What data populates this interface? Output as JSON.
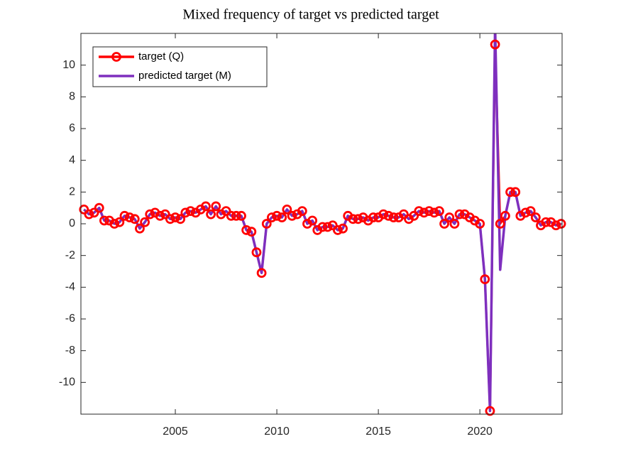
{
  "chart_data": {
    "type": "line",
    "title": "Mixed frequency of target vs predicted target",
    "x": [
      2000.5,
      2000.75,
      2001.0,
      2001.25,
      2001.5,
      2001.75,
      2002.0,
      2002.25,
      2002.5,
      2002.75,
      2003.0,
      2003.25,
      2003.5,
      2003.75,
      2004.0,
      2004.25,
      2004.5,
      2004.75,
      2005.0,
      2005.25,
      2005.5,
      2005.75,
      2006.0,
      2006.25,
      2006.5,
      2006.75,
      2007.0,
      2007.25,
      2007.5,
      2007.75,
      2008.0,
      2008.25,
      2008.5,
      2008.75,
      2009.0,
      2009.25,
      2009.5,
      2009.75,
      2010.0,
      2010.25,
      2010.5,
      2010.75,
      2011.0,
      2011.25,
      2011.5,
      2011.75,
      2012.0,
      2012.25,
      2012.5,
      2012.75,
      2013.0,
      2013.25,
      2013.5,
      2013.75,
      2014.0,
      2014.25,
      2014.5,
      2014.75,
      2015.0,
      2015.25,
      2015.5,
      2015.75,
      2016.0,
      2016.25,
      2016.5,
      2016.75,
      2017.0,
      2017.25,
      2017.5,
      2017.75,
      2018.0,
      2018.25,
      2018.5,
      2018.75,
      2019.0,
      2019.25,
      2019.5,
      2019.75,
      2020.0,
      2020.25,
      2020.5,
      2020.75,
      2021.0,
      2021.25,
      2021.5,
      2021.75,
      2022.0,
      2022.25,
      2022.5,
      2022.75,
      2023.0,
      2023.25,
      2023.5,
      2023.75,
      2024.0
    ],
    "series": [
      {
        "name": "target (Q)",
        "color": "#ff0000",
        "marker": "circle",
        "values": [
          0.9,
          0.6,
          0.7,
          1.0,
          0.2,
          0.2,
          0.0,
          0.1,
          0.5,
          0.4,
          0.3,
          -0.3,
          0.1,
          0.6,
          0.7,
          0.5,
          0.6,
          0.3,
          0.4,
          0.3,
          0.7,
          0.8,
          0.7,
          0.9,
          1.1,
          0.6,
          1.1,
          0.6,
          0.8,
          0.5,
          0.5,
          0.5,
          -0.4,
          -0.5,
          -1.8,
          -3.1,
          0.0,
          0.4,
          0.5,
          0.4,
          0.9,
          0.5,
          0.6,
          0.8,
          0.0,
          0.2,
          -0.4,
          -0.2,
          -0.2,
          -0.1,
          -0.4,
          -0.3,
          0.5,
          0.3,
          0.3,
          0.4,
          0.2,
          0.4,
          0.4,
          0.6,
          0.5,
          0.4,
          0.4,
          0.6,
          0.3,
          0.5,
          0.8,
          0.7,
          0.8,
          0.7,
          0.8,
          0.0,
          0.4,
          0.0,
          0.6,
          0.6,
          0.4,
          0.2,
          0.0,
          -3.5,
          -11.8,
          11.3,
          0.0,
          0.5,
          2.0,
          2.0,
          0.5,
          0.7,
          0.8,
          0.4,
          -0.1,
          0.1,
          0.1,
          -0.1,
          0.0
        ]
      },
      {
        "name": "predicted target (M)",
        "color": "#7e2fbe",
        "values": [
          0.9,
          0.6,
          0.7,
          1.0,
          0.2,
          0.2,
          0.0,
          0.1,
          0.5,
          0.4,
          0.3,
          -0.3,
          0.1,
          0.6,
          0.7,
          0.5,
          0.6,
          0.3,
          0.4,
          0.3,
          0.7,
          0.8,
          0.7,
          0.9,
          1.1,
          0.6,
          1.1,
          0.6,
          0.8,
          0.5,
          0.5,
          0.5,
          -0.4,
          -0.5,
          -1.8,
          -3.1,
          0.0,
          0.4,
          0.5,
          0.4,
          0.9,
          0.5,
          0.6,
          0.8,
          0.0,
          0.2,
          -0.4,
          -0.2,
          -0.2,
          -0.1,
          -0.4,
          -0.3,
          0.5,
          0.3,
          0.3,
          0.4,
          0.2,
          0.4,
          0.4,
          0.6,
          0.5,
          0.4,
          0.4,
          0.6,
          0.3,
          0.5,
          0.8,
          0.7,
          0.8,
          0.7,
          0.8,
          0.0,
          0.4,
          0.0,
          0.6,
          0.6,
          0.4,
          0.2,
          0.0,
          -3.5,
          -11.8,
          12.5,
          -2.9,
          0.5,
          2.0,
          2.0,
          0.5,
          0.7,
          0.8,
          0.4,
          -0.1,
          0.1,
          0.1,
          -0.1,
          0.0
        ]
      }
    ],
    "xlim": [
      2000.35,
      2024.05
    ],
    "xticks": [
      2005,
      2010,
      2015,
      2020
    ],
    "ylim": [
      -12,
      12
    ],
    "yticks": [
      -10,
      -8,
      -6,
      -4,
      -2,
      0,
      2,
      4,
      6,
      8,
      10
    ],
    "legend": "upper left"
  }
}
